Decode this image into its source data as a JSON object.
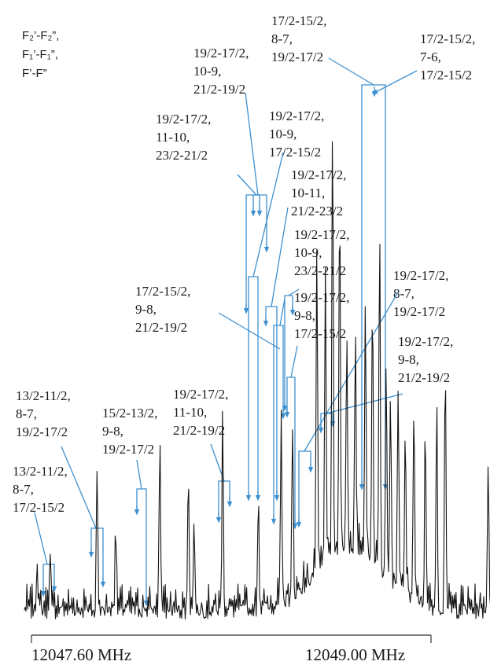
{
  "colors": {
    "annotation": "#3e90cf",
    "spectrum": "#151515",
    "text": "#1a1a1a"
  },
  "legend": [
    "F₂’-F₂”,",
    "F₁’-F₁”,",
    "F’-F”"
  ],
  "chart_data": {
    "type": "line",
    "title": "",
    "xlabel": "",
    "ylabel": "",
    "x_unit": "MHz",
    "x_ticks": [
      "12047.60 MHz",
      "12049.00 MHz"
    ],
    "xlim": [
      12047.6,
      12049.0
    ],
    "grid": false,
    "legend_placement": "top-left",
    "spectrum": {
      "x_start": 12047.575,
      "x_end": 12049.58,
      "noise_level": 0.07,
      "peaks": [
        {
          "x": 12047.62,
          "h": 0.1
        },
        {
          "x": 12047.665,
          "h": 0.11
        },
        {
          "x": 12047.83,
          "h": 0.26
        },
        {
          "x": 12047.895,
          "h": 0.16
        },
        {
          "x": 12048.05,
          "h": 0.33
        },
        {
          "x": 12048.15,
          "h": 0.26
        },
        {
          "x": 12048.17,
          "h": 0.17
        },
        {
          "x": 12048.27,
          "h": 0.36
        },
        {
          "x": 12048.395,
          "h": 0.21
        },
        {
          "x": 12048.475,
          "h": 0.32
        },
        {
          "x": 12048.515,
          "h": 0.31
        },
        {
          "x": 12048.6,
          "h": 0.6
        },
        {
          "x": 12048.63,
          "h": 0.57
        },
        {
          "x": 12048.655,
          "h": 0.83
        },
        {
          "x": 12048.68,
          "h": 0.7
        },
        {
          "x": 12048.705,
          "h": 0.41
        },
        {
          "x": 12048.735,
          "h": 0.39
        },
        {
          "x": 12048.77,
          "h": 0.48
        },
        {
          "x": 12048.795,
          "h": 0.51
        },
        {
          "x": 12048.82,
          "h": 0.65
        },
        {
          "x": 12048.843,
          "h": 0.41
        },
        {
          "x": 12048.858,
          "h": 0.35
        },
        {
          "x": 12048.885,
          "h": 0.36
        },
        {
          "x": 12048.91,
          "h": 0.31
        },
        {
          "x": 12048.94,
          "h": 0.36
        },
        {
          "x": 12048.98,
          "h": 0.32
        },
        {
          "x": 12049.02,
          "h": 0.36
        },
        {
          "x": 12049.05,
          "h": 0.48
        },
        {
          "x": 12049.2,
          "h": 0.28
        },
        {
          "x": 12049.25,
          "h": 1.0
        },
        {
          "x": 12049.29,
          "h": 0.21
        }
      ]
    },
    "annotations": [
      {
        "lines": [
          "17/2-15/2,",
          "8-7,",
          "19/2-17/2"
        ]
      },
      {
        "lines": [
          "17/2-15/2,",
          "7-6,",
          "17/2-15/2"
        ]
      },
      {
        "lines": [
          "19/2-17/2,",
          "10-9,",
          "21/2-19/2"
        ]
      },
      {
        "lines": [
          "19/2-17/2,",
          "10-9,",
          "17/2-15/2"
        ]
      },
      {
        "lines": [
          "19/2-17/2,",
          "11-10,",
          "23/2-21/2"
        ]
      },
      {
        "lines": [
          "19/2-17/2,",
          "10-11,",
          "21/2-23/2"
        ]
      },
      {
        "lines": [
          "19/2-17/2,",
          "10-9,",
          "23/2-21/2"
        ]
      },
      {
        "lines": [
          "19/2-17/2,",
          "9-8,",
          "17/2-15/2"
        ]
      },
      {
        "lines": [
          "17/2-15/2,",
          "9-8,",
          "21/2-19/2"
        ]
      },
      {
        "lines": [
          "19/2-17/2,",
          "8-7,",
          "19/2-17/2"
        ]
      },
      {
        "lines": [
          "19/2-17/2,",
          "9-8,",
          "21/2-19/2"
        ]
      },
      {
        "lines": [
          "13/2-11/2,",
          "8-7,",
          "19/2-17/2"
        ]
      },
      {
        "lines": [
          "15/2-13/2,",
          "9-8,",
          "19/2-17/2"
        ]
      },
      {
        "lines": [
          "19/2-17/2,",
          "11-10,",
          "21/2-19/2"
        ]
      },
      {
        "lines": [
          "13/2-11/2,",
          "8-7,",
          "17/2-15/2"
        ]
      }
    ]
  }
}
